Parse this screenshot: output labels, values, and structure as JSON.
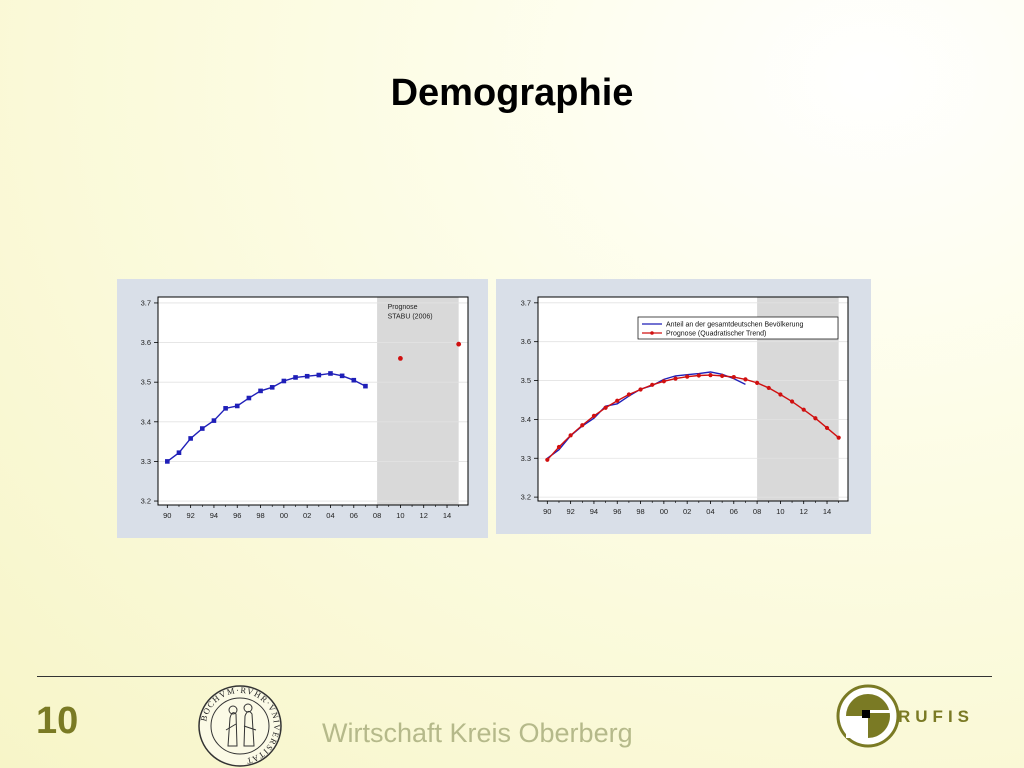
{
  "slide": {
    "title": "Demographie",
    "page_number": "10",
    "footer_text": "Wirtschaft Kreis Oberberg",
    "seal_text": "BOCHVM·RVHR·VNIVERSITAT",
    "logo_text": "RUFIS"
  },
  "colors": {
    "blue_series": "#1f1fb8",
    "red_series": "#d01010",
    "shade": "#d9d9d9",
    "accent": "#7a7a24"
  },
  "chart_data": [
    {
      "type": "line",
      "x_tick_labels": [
        "90",
        "92",
        "94",
        "96",
        "98",
        "00",
        "02",
        "04",
        "06",
        "08",
        "10",
        "12",
        "14"
      ],
      "x_ticks": [
        1990,
        1992,
        1994,
        1996,
        1998,
        2000,
        2002,
        2004,
        2006,
        2008,
        2010,
        2012,
        2014
      ],
      "xlim": [
        1989.2,
        2015.8
      ],
      "y_ticks": [
        3.2,
        3.3,
        3.4,
        3.5,
        3.6,
        3.7
      ],
      "ylim": [
        3.19,
        3.715
      ],
      "grid": true,
      "shaded_region": [
        2008,
        2015
      ],
      "annotation": [
        "Prognose",
        "STABU (2006)"
      ],
      "series": [
        {
          "style": "line-square",
          "color": "#1f1fb8",
          "x": [
            1990,
            1991,
            1992,
            1993,
            1994,
            1995,
            1996,
            1997,
            1998,
            1999,
            2000,
            2001,
            2002,
            2003,
            2004,
            2005,
            2006,
            2007
          ],
          "y": [
            3.3,
            3.322,
            3.358,
            3.383,
            3.403,
            3.434,
            3.44,
            3.46,
            3.478,
            3.487,
            3.503,
            3.512,
            3.515,
            3.518,
            3.522,
            3.516,
            3.505,
            3.49
          ]
        },
        {
          "style": "point",
          "color": "#d01010",
          "x": [
            2010,
            2015
          ],
          "y": [
            3.56,
            3.596
          ]
        }
      ]
    },
    {
      "type": "line",
      "x_tick_labels": [
        "90",
        "92",
        "94",
        "96",
        "98",
        "00",
        "02",
        "04",
        "06",
        "08",
        "10",
        "12",
        "14"
      ],
      "x_ticks": [
        1990,
        1992,
        1994,
        1996,
        1998,
        2000,
        2002,
        2004,
        2006,
        2008,
        2010,
        2012,
        2014
      ],
      "xlim": [
        1989.2,
        2015.8
      ],
      "y_ticks": [
        3.2,
        3.3,
        3.4,
        3.5,
        3.6,
        3.7
      ],
      "ylim": [
        3.19,
        3.715
      ],
      "grid": true,
      "shaded_region": [
        2008,
        2015
      ],
      "legend_placement": "top-right",
      "series": [
        {
          "name": "Anteil an der gesamtdeutschen Bevölkerung",
          "style": "line",
          "color": "#1f1fb8",
          "x": [
            1990,
            1991,
            1992,
            1993,
            1994,
            1995,
            1996,
            1997,
            1998,
            1999,
            2000,
            2001,
            2002,
            2003,
            2004,
            2005,
            2006,
            2007
          ],
          "y": [
            3.3,
            3.322,
            3.358,
            3.383,
            3.403,
            3.434,
            3.44,
            3.46,
            3.478,
            3.487,
            3.503,
            3.512,
            3.515,
            3.518,
            3.522,
            3.516,
            3.505,
            3.49
          ]
        },
        {
          "name": "Prognose (Quadratischer Trend)",
          "style": "line-dot",
          "color": "#d01010",
          "x": [
            1990,
            1991,
            1992,
            1993,
            1994,
            1995,
            1996,
            1997,
            1998,
            1999,
            2000,
            2001,
            2002,
            2003,
            2004,
            2005,
            2006,
            2007,
            2008,
            2009,
            2010,
            2011,
            2012,
            2013,
            2014,
            2015
          ],
          "y": [
            3.296,
            3.329,
            3.359,
            3.385,
            3.409,
            3.43,
            3.448,
            3.464,
            3.477,
            3.489,
            3.498,
            3.505,
            3.51,
            3.513,
            3.514,
            3.512,
            3.509,
            3.503,
            3.494,
            3.481,
            3.464,
            3.446,
            3.425,
            3.403,
            3.378,
            3.353
          ]
        }
      ]
    }
  ]
}
